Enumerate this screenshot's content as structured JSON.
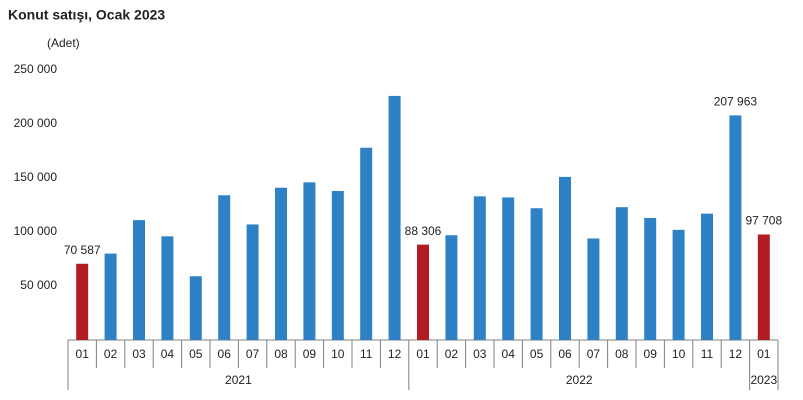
{
  "chart_data": {
    "type": "bar",
    "title": "Konut satışı, Ocak 2023",
    "y_unit": "(Adet)",
    "groups": [
      {
        "label": "2021",
        "categories": [
          "01",
          "02",
          "03",
          "04",
          "05",
          "06",
          "07",
          "08",
          "09",
          "10",
          "11",
          "12"
        ]
      },
      {
        "label": "2022",
        "categories": [
          "01",
          "02",
          "03",
          "04",
          "05",
          "06",
          "07",
          "08",
          "09",
          "10",
          "11",
          "12"
        ]
      },
      {
        "label": "2023",
        "categories": [
          "01"
        ]
      }
    ],
    "values": [
      70587,
      80000,
      111000,
      96000,
      59000,
      134000,
      107000,
      141000,
      146000,
      138000,
      178000,
      226000,
      88306,
      97000,
      133000,
      132000,
      122000,
      151000,
      94000,
      123000,
      113000,
      102000,
      117000,
      207963,
      97708
    ],
    "value_labels": [
      "70 587",
      null,
      null,
      null,
      null,
      null,
      null,
      null,
      null,
      null,
      null,
      null,
      "88 306",
      null,
      null,
      null,
      null,
      null,
      null,
      null,
      null,
      null,
      null,
      "207 963",
      "97 708"
    ],
    "colors": [
      "#b01c22",
      "#2f81c5",
      "#2f81c5",
      "#2f81c5",
      "#2f81c5",
      "#2f81c5",
      "#2f81c5",
      "#2f81c5",
      "#2f81c5",
      "#2f81c5",
      "#2f81c5",
      "#2f81c5",
      "#b01c22",
      "#2f81c5",
      "#2f81c5",
      "#2f81c5",
      "#2f81c5",
      "#2f81c5",
      "#2f81c5",
      "#2f81c5",
      "#2f81c5",
      "#2f81c5",
      "#2f81c5",
      "#2f81c5",
      "#b01c22"
    ],
    "ylim": [
      0,
      250000
    ],
    "yticks": [
      {
        "value": 50000,
        "label": "50 000"
      },
      {
        "value": 100000,
        "label": "100 000"
      },
      {
        "value": 150000,
        "label": "150 000"
      },
      {
        "value": 200000,
        "label": "200 000"
      },
      {
        "value": 250000,
        "label": "250 000"
      }
    ],
    "grid": false
  }
}
